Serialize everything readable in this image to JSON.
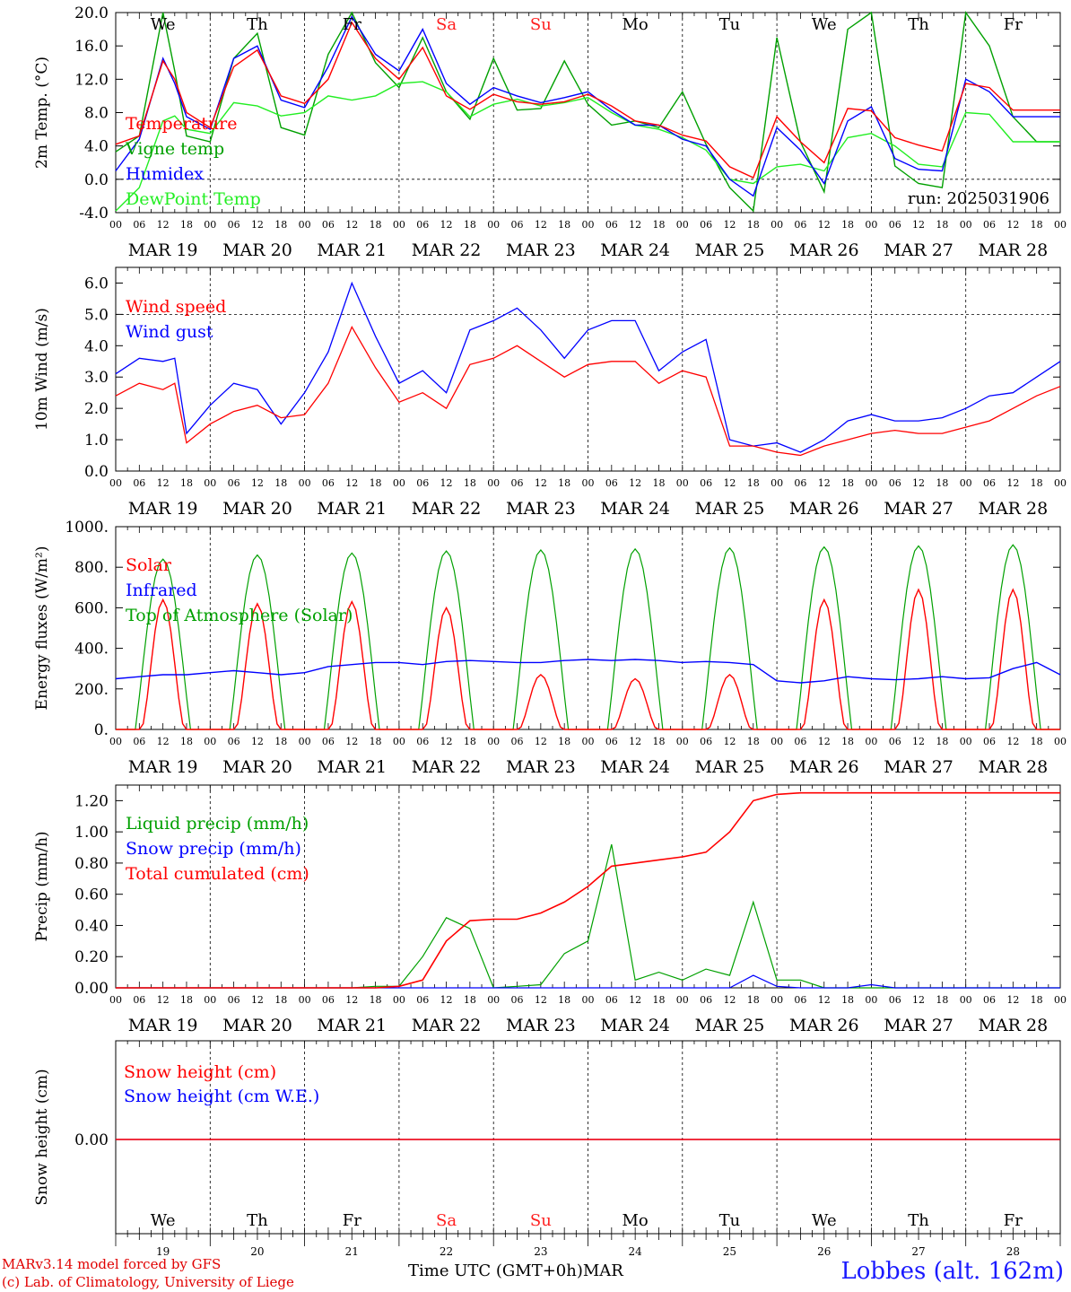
{
  "colors": {
    "red": "#ff0000",
    "green": "#00a000",
    "blue": "#0000ff",
    "lightgreen": "#22ee22",
    "black": "#000000",
    "weekend": "#ff2020"
  },
  "days": [
    "We",
    "Th",
    "Fr",
    "Sa",
    "Su",
    "Mo",
    "Tu",
    "We",
    "Th",
    "Fr"
  ],
  "weekend_days": [
    "Sa",
    "Su"
  ],
  "dates": [
    "MAR 19",
    "MAR 20",
    "MAR 21",
    "MAR 22",
    "MAR 23",
    "MAR 24",
    "MAR 25",
    "MAR 26",
    "MAR 27",
    "MAR 28"
  ],
  "date_numbers": [
    "19",
    "20",
    "21",
    "22",
    "23",
    "24",
    "25",
    "26",
    "27",
    "28"
  ],
  "hour_ticks": [
    "00",
    "06",
    "12",
    "18"
  ],
  "end_tick": "00",
  "footer": {
    "credit1": "MARv3.14 model forced by GFS",
    "credit2": "(c) Lab. of Climatology, University of Liege",
    "xlabel": "Time UTC (GMT+0h)MAR",
    "station": "Lobbes (alt. 162m)"
  },
  "chart_data": [
    {
      "type": "line",
      "ylabel": "2m Temp. (°C)",
      "ylim": [
        -4,
        20
      ],
      "yticks": [
        "-4.0",
        "0.0",
        "4.0",
        "8.0",
        "12.0",
        "16.0",
        "20.0"
      ],
      "run_label": "run: 2025031906",
      "x_hours": [
        0,
        6,
        12,
        15,
        18,
        24,
        30,
        36,
        42,
        48,
        54,
        60,
        66,
        72,
        78,
        84,
        90,
        96,
        102,
        108,
        114,
        120,
        126,
        132,
        138,
        144,
        150,
        156,
        162,
        168,
        174,
        180,
        186,
        192,
        198,
        204,
        210,
        216,
        222,
        228,
        234,
        240
      ],
      "series": [
        {
          "name": "Temperature",
          "color": "red",
          "values": [
            4.2,
            5.2,
            14.2,
            12,
            8,
            6.2,
            13.5,
            15.5,
            10,
            9.1,
            12,
            18.8,
            14.5,
            12,
            15.8,
            10,
            8.4,
            10.2,
            9.3,
            9,
            9.3,
            10.2,
            8.8,
            7,
            6.5,
            5.3,
            4.6,
            1.5,
            0.2,
            7.5,
            4.5,
            2,
            8.5,
            8.2,
            5,
            4.1,
            3.4,
            11.5,
            11,
            8.3,
            8.3,
            8.3
          ]
        },
        {
          "name": "Vigne temp",
          "color": "green",
          "values": [
            3.3,
            5.2,
            20,
            13,
            5.2,
            4.5,
            14.5,
            17.5,
            6.2,
            5.3,
            15,
            20,
            14,
            11,
            17,
            10.5,
            7.2,
            14.5,
            8.3,
            8.5,
            14.2,
            9,
            6.5,
            7,
            6.2,
            10.5,
            4.2,
            -1,
            -3.8,
            17,
            4.5,
            -1.5,
            18,
            20,
            1.6,
            -0.5,
            -1,
            20,
            16,
            7.5,
            4.5,
            4.5
          ]
        },
        {
          "name": "Humidex",
          "color": "blue",
          "values": [
            1,
            4.8,
            14.5,
            11.5,
            7.5,
            6,
            14.5,
            16,
            9.5,
            8.6,
            13.5,
            19.5,
            15,
            13,
            18,
            11.5,
            9,
            11,
            10,
            9.2,
            9.8,
            10.5,
            8.3,
            6.5,
            6.5,
            4.8,
            4,
            0,
            -2,
            6.2,
            3.5,
            -0.5,
            7,
            8.7,
            2.5,
            1.2,
            1,
            12,
            10.5,
            7.5,
            7.5,
            7.5
          ]
        },
        {
          "name": "DewPoint Temp",
          "color": "lightgreen",
          "values": [
            -3.8,
            -1,
            7,
            7.6,
            6,
            5.5,
            9.2,
            8.8,
            7.6,
            8,
            10,
            9.5,
            10,
            11.5,
            11.7,
            10.5,
            7.5,
            9,
            9.6,
            8.8,
            9.2,
            9.8,
            8,
            6.5,
            6,
            5,
            3.5,
            0,
            -0.5,
            1.5,
            1.8,
            1,
            5,
            5.5,
            4,
            1.8,
            1.5,
            8,
            7.8,
            4.5,
            4.5,
            4.5
          ]
        }
      ]
    },
    {
      "type": "line",
      "ylabel": "10m Wind (m/s)",
      "ylim": [
        0,
        6.5
      ],
      "yticks": [
        "0.0",
        "1.0",
        "2.0",
        "3.0",
        "4.0",
        "5.0",
        "6.0"
      ],
      "dashed_ref": 5,
      "x_hours": [
        0,
        6,
        12,
        15,
        18,
        24,
        30,
        36,
        42,
        48,
        54,
        60,
        66,
        72,
        78,
        84,
        90,
        96,
        102,
        108,
        114,
        120,
        126,
        132,
        138,
        144,
        150,
        156,
        162,
        168,
        174,
        180,
        186,
        192,
        198,
        204,
        210,
        216,
        222,
        228,
        234,
        240
      ],
      "series": [
        {
          "name": "Wind speed",
          "color": "red",
          "values": [
            2.4,
            2.8,
            2.6,
            2.8,
            0.9,
            1.5,
            1.9,
            2.1,
            1.7,
            1.8,
            2.8,
            4.6,
            3.3,
            2.2,
            2.5,
            2,
            3.4,
            3.6,
            4,
            3.5,
            3,
            3.4,
            3.5,
            3.5,
            2.8,
            3.2,
            3,
            0.8,
            0.8,
            0.6,
            0.5,
            0.8,
            1,
            1.2,
            1.3,
            1.2,
            1.2,
            1.4,
            1.6,
            2,
            2.4,
            2.7
          ]
        },
        {
          "name": "Wind gust",
          "color": "blue",
          "values": [
            3.1,
            3.6,
            3.5,
            3.6,
            1.2,
            2.1,
            2.8,
            2.6,
            1.5,
            2.5,
            3.8,
            6,
            4.3,
            2.8,
            3.2,
            2.5,
            4.5,
            4.8,
            5.2,
            4.5,
            3.6,
            4.5,
            4.8,
            4.8,
            3.2,
            3.8,
            4.2,
            1,
            0.8,
            0.9,
            0.6,
            1,
            1.6,
            1.8,
            1.6,
            1.6,
            1.7,
            2,
            2.4,
            2.5,
            3,
            3.5
          ]
        }
      ]
    },
    {
      "type": "line",
      "ylabel": "Energy fluxes (W/m²)",
      "ylim": [
        0,
        1000
      ],
      "yticks": [
        "0.",
        "200.",
        "400.",
        "600.",
        "800.",
        "1000."
      ],
      "daily_peaks": {
        "Solar": [
          640,
          620,
          630,
          600,
          270,
          250,
          270,
          640,
          690,
          690
        ],
        "Top of Atmosphere (Solar)": [
          840,
          860,
          870,
          880,
          885,
          890,
          895,
          900,
          905,
          910
        ]
      },
      "infrared_hourly": [
        250,
        260,
        270,
        270,
        280,
        290,
        280,
        270,
        280,
        310,
        320,
        330,
        330,
        320,
        335,
        340,
        335,
        330,
        330,
        340,
        345,
        340,
        345,
        340,
        330,
        335,
        330,
        320,
        240,
        230,
        240,
        260,
        250,
        245,
        250,
        260,
        250,
        255,
        300,
        330,
        270
      ],
      "series": [
        {
          "name": "Solar",
          "color": "red"
        },
        {
          "name": "Infrared",
          "color": "blue"
        },
        {
          "name": "Top of Atmosphere (Solar)",
          "color": "green"
        }
      ]
    },
    {
      "type": "line",
      "ylabel": "Precip (mm/h)",
      "ylim": [
        0,
        1.3
      ],
      "yticks": [
        "0.00",
        "0.20",
        "0.40",
        "0.60",
        "0.80",
        "1.00",
        "1.20"
      ],
      "x_hours": [
        0,
        60,
        66,
        72,
        78,
        84,
        90,
        96,
        102,
        108,
        114,
        120,
        126,
        132,
        138,
        144,
        150,
        156,
        162,
        168,
        174,
        180,
        186,
        192,
        198,
        204,
        210,
        216,
        222,
        228,
        234,
        240
      ],
      "series": [
        {
          "name": "Liquid precip (mm/h)",
          "color": "green",
          "values": [
            0,
            0,
            0.01,
            0.01,
            0.2,
            0.45,
            0.38,
            0,
            0.01,
            0.02,
            0.22,
            0.3,
            0.92,
            0.05,
            0.1,
            0.05,
            0.12,
            0.08,
            0.55,
            0.05,
            0.05,
            0,
            0,
            0,
            0,
            0,
            0,
            0,
            0,
            0,
            0,
            0
          ]
        },
        {
          "name": "Snow precip (mm/h)",
          "color": "blue",
          "values": [
            0,
            0,
            0,
            0,
            0,
            0,
            0,
            0,
            0,
            0,
            0,
            0,
            0,
            0,
            0,
            0,
            0,
            0,
            0.08,
            0.01,
            0,
            0,
            0,
            0.02,
            0,
            0,
            0,
            0,
            0,
            0,
            0,
            0
          ]
        },
        {
          "name": "Total cumulated (cm)",
          "color": "red",
          "values": [
            0,
            0,
            0,
            0.01,
            0.05,
            0.3,
            0.43,
            0.44,
            0.44,
            0.48,
            0.55,
            0.65,
            0.78,
            0.8,
            0.82,
            0.84,
            0.87,
            1.0,
            1.2,
            1.24,
            1.25,
            1.25,
            1.25,
            1.25,
            1.25,
            1.25,
            1.25,
            1.25,
            1.25,
            1.25,
            1.25,
            1.25
          ]
        }
      ]
    },
    {
      "type": "line",
      "ylabel": "Snow height (cm)",
      "yticks": [
        "0.00"
      ],
      "series": [
        {
          "name": "Snow height (cm)",
          "color": "red",
          "values": [
            0,
            0
          ]
        },
        {
          "name": "Snow height (cm W.E.)",
          "color": "blue",
          "values": [
            0,
            0
          ]
        }
      ]
    }
  ]
}
